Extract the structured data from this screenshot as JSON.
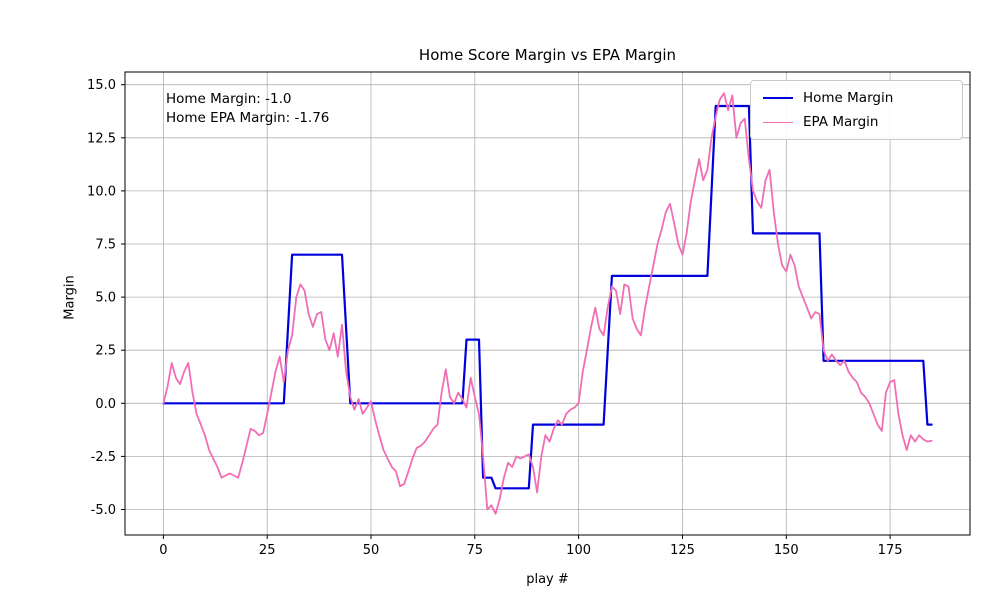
{
  "chart_data": {
    "type": "line",
    "title": "Home Score Margin vs EPA Margin",
    "xlabel": "play #",
    "ylabel": "Margin",
    "xlim": [
      -9.25,
      194.25
    ],
    "ylim": [
      -6.2,
      15.6
    ],
    "xticks": [
      0,
      25,
      50,
      75,
      100,
      125,
      150,
      175
    ],
    "yticks": [
      -5,
      -2.5,
      0,
      2.5,
      5,
      7.5,
      10,
      12.5,
      15
    ],
    "grid": true,
    "legend_position": "upper right",
    "annotation": {
      "line1": "Home Margin: -1.0",
      "line2": "Home EPA Margin: -1.76"
    },
    "series": [
      {
        "id": "home-margin",
        "name": "Home Margin",
        "color": "#0000dd",
        "width": 2.2,
        "points": [
          [
            0,
            0
          ],
          [
            29,
            0
          ],
          [
            31,
            7
          ],
          [
            43,
            7
          ],
          [
            45,
            0
          ],
          [
            72,
            0
          ],
          [
            73,
            3
          ],
          [
            76,
            3
          ],
          [
            77,
            -3.5
          ],
          [
            79,
            -3.5
          ],
          [
            80,
            -4
          ],
          [
            88,
            -4
          ],
          [
            89,
            -1
          ],
          [
            106,
            -1
          ],
          [
            108,
            6
          ],
          [
            131,
            6
          ],
          [
            133,
            14
          ],
          [
            141,
            14
          ],
          [
            142,
            8
          ],
          [
            158,
            8
          ],
          [
            159,
            2
          ],
          [
            183,
            2
          ],
          [
            184,
            -1
          ],
          [
            185,
            -1
          ]
        ]
      },
      {
        "id": "epa-margin",
        "name": "EPA Margin",
        "color": "#f06eb4",
        "width": 1.8,
        "points": [
          [
            0,
            0
          ],
          [
            1,
            0.8
          ],
          [
            2,
            1.9
          ],
          [
            3,
            1.2
          ],
          [
            4,
            0.9
          ],
          [
            5,
            1.5
          ],
          [
            6,
            1.9
          ],
          [
            7,
            0.5
          ],
          [
            8,
            -0.5
          ],
          [
            9,
            -1.0
          ],
          [
            10,
            -1.5
          ],
          [
            11,
            -2.2
          ],
          [
            12,
            -2.6
          ],
          [
            13,
            -3.0
          ],
          [
            14,
            -3.5
          ],
          [
            15,
            -3.4
          ],
          [
            16,
            -3.3
          ],
          [
            17,
            -3.4
          ],
          [
            18,
            -3.5
          ],
          [
            19,
            -2.8
          ],
          [
            20,
            -2.0
          ],
          [
            21,
            -1.2
          ],
          [
            22,
            -1.3
          ],
          [
            23,
            -1.5
          ],
          [
            24,
            -1.4
          ],
          [
            25,
            -0.5
          ],
          [
            26,
            0.5
          ],
          [
            27,
            1.5
          ],
          [
            28,
            2.2
          ],
          [
            29,
            1.0
          ],
          [
            30,
            2.5
          ],
          [
            31,
            3.2
          ],
          [
            32,
            5.0
          ],
          [
            33,
            5.6
          ],
          [
            34,
            5.3
          ],
          [
            35,
            4.2
          ],
          [
            36,
            3.6
          ],
          [
            37,
            4.2
          ],
          [
            38,
            4.3
          ],
          [
            39,
            3.0
          ],
          [
            40,
            2.5
          ],
          [
            41,
            3.3
          ],
          [
            42,
            2.2
          ],
          [
            43,
            3.7
          ],
          [
            44,
            1.5
          ],
          [
            45,
            0.3
          ],
          [
            46,
            -0.3
          ],
          [
            47,
            0.2
          ],
          [
            48,
            -0.5
          ],
          [
            49,
            -0.2
          ],
          [
            50,
            0.1
          ],
          [
            51,
            -0.8
          ],
          [
            52,
            -1.5
          ],
          [
            53,
            -2.2
          ],
          [
            54,
            -2.6
          ],
          [
            55,
            -3.0
          ],
          [
            56,
            -3.2
          ],
          [
            57,
            -3.9
          ],
          [
            58,
            -3.8
          ],
          [
            59,
            -3.2
          ],
          [
            60,
            -2.6
          ],
          [
            61,
            -2.1
          ],
          [
            62,
            -2.0
          ],
          [
            63,
            -1.8
          ],
          [
            64,
            -1.5
          ],
          [
            65,
            -1.2
          ],
          [
            66,
            -1.0
          ],
          [
            67,
            0.5
          ],
          [
            68,
            1.6
          ],
          [
            69,
            0.3
          ],
          [
            70,
            0.0
          ],
          [
            71,
            0.5
          ],
          [
            72,
            0.2
          ],
          [
            73,
            -0.2
          ],
          [
            74,
            1.2
          ],
          [
            75,
            0.3
          ],
          [
            76,
            -0.5
          ],
          [
            77,
            -2.5
          ],
          [
            78,
            -5.0
          ],
          [
            79,
            -4.8
          ],
          [
            80,
            -5.2
          ],
          [
            81,
            -4.5
          ],
          [
            82,
            -3.5
          ],
          [
            83,
            -2.8
          ],
          [
            84,
            -3.0
          ],
          [
            85,
            -2.5
          ],
          [
            86,
            -2.6
          ],
          [
            87,
            -2.5
          ],
          [
            88,
            -2.4
          ],
          [
            89,
            -3.0
          ],
          [
            90,
            -4.2
          ],
          [
            91,
            -2.5
          ],
          [
            92,
            -1.5
          ],
          [
            93,
            -1.8
          ],
          [
            94,
            -1.2
          ],
          [
            95,
            -0.8
          ],
          [
            96,
            -1.0
          ],
          [
            97,
            -0.5
          ],
          [
            98,
            -0.3
          ],
          [
            99,
            -0.2
          ],
          [
            100,
            0.0
          ],
          [
            101,
            1.5
          ],
          [
            102,
            2.5
          ],
          [
            103,
            3.6
          ],
          [
            104,
            4.5
          ],
          [
            105,
            3.5
          ],
          [
            106,
            3.2
          ],
          [
            107,
            4.5
          ],
          [
            108,
            5.5
          ],
          [
            109,
            5.3
          ],
          [
            110,
            4.2
          ],
          [
            111,
            5.6
          ],
          [
            112,
            5.5
          ],
          [
            113,
            4.0
          ],
          [
            114,
            3.5
          ],
          [
            115,
            3.2
          ],
          [
            116,
            4.5
          ],
          [
            117,
            5.5
          ],
          [
            118,
            6.5
          ],
          [
            119,
            7.5
          ],
          [
            120,
            8.2
          ],
          [
            121,
            9.0
          ],
          [
            122,
            9.4
          ],
          [
            123,
            8.5
          ],
          [
            124,
            7.5
          ],
          [
            125,
            7.0
          ],
          [
            126,
            8.0
          ],
          [
            127,
            9.5
          ],
          [
            128,
            10.5
          ],
          [
            129,
            11.5
          ],
          [
            130,
            10.5
          ],
          [
            131,
            11.0
          ],
          [
            132,
            12.5
          ],
          [
            133,
            13.5
          ],
          [
            134,
            14.3
          ],
          [
            135,
            14.6
          ],
          [
            136,
            13.8
          ],
          [
            137,
            14.5
          ],
          [
            138,
            12.5
          ],
          [
            139,
            13.2
          ],
          [
            140,
            13.4
          ],
          [
            141,
            11.5
          ],
          [
            142,
            10.0
          ],
          [
            143,
            9.5
          ],
          [
            144,
            9.2
          ],
          [
            145,
            10.5
          ],
          [
            146,
            11.0
          ],
          [
            147,
            9.0
          ],
          [
            148,
            7.5
          ],
          [
            149,
            6.5
          ],
          [
            150,
            6.2
          ],
          [
            151,
            7.0
          ],
          [
            152,
            6.5
          ],
          [
            153,
            5.5
          ],
          [
            154,
            5.0
          ],
          [
            155,
            4.5
          ],
          [
            156,
            4.0
          ],
          [
            157,
            4.3
          ],
          [
            158,
            4.2
          ],
          [
            159,
            2.5
          ],
          [
            160,
            2.0
          ],
          [
            161,
            2.3
          ],
          [
            162,
            2.0
          ],
          [
            163,
            1.8
          ],
          [
            164,
            2.0
          ],
          [
            165,
            1.5
          ],
          [
            166,
            1.2
          ],
          [
            167,
            1.0
          ],
          [
            168,
            0.5
          ],
          [
            169,
            0.3
          ],
          [
            170,
            0.0
          ],
          [
            171,
            -0.5
          ],
          [
            172,
            -1.0
          ],
          [
            173,
            -1.3
          ],
          [
            174,
            0.5
          ],
          [
            175,
            1.0
          ],
          [
            176,
            1.1
          ],
          [
            177,
            -0.5
          ],
          [
            178,
            -1.5
          ],
          [
            179,
            -2.2
          ],
          [
            180,
            -1.5
          ],
          [
            181,
            -1.8
          ],
          [
            182,
            -1.5
          ],
          [
            183,
            -1.7
          ],
          [
            184,
            -1.8
          ],
          [
            185,
            -1.76
          ]
        ]
      }
    ]
  }
}
